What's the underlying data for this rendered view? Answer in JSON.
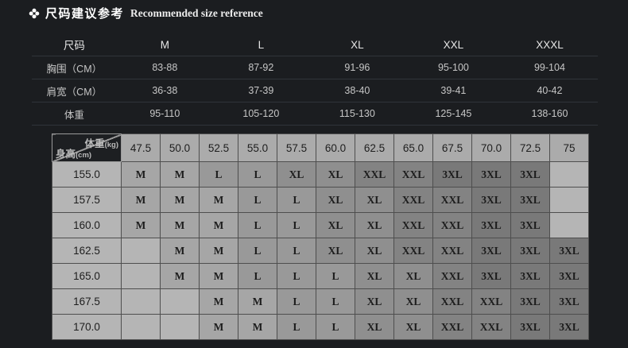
{
  "header": {
    "title_cn": "尺码建议参考",
    "title_en": "Recommended size reference",
    "icon": "flower-icon",
    "icon_color": "#ffffff"
  },
  "size_table": {
    "header": [
      "尺码",
      "M",
      "L",
      "XL",
      "XXL",
      "XXXL"
    ],
    "rows": [
      {
        "label": "胸围（CM）",
        "values": [
          "83-88",
          "87-92",
          "91-96",
          "95-100",
          "99-104"
        ]
      },
      {
        "label": "肩宽（CM）",
        "values": [
          "36-38",
          "37-39",
          "38-40",
          "39-41",
          "40-42"
        ]
      },
      {
        "label": "体重",
        "values": [
          "95-110",
          "105-120",
          "115-130",
          "125-145",
          "138-160"
        ]
      }
    ]
  },
  "matrix_table": {
    "corner": {
      "top_right": "体重",
      "top_right_unit": "(kg)",
      "bottom_left": "身高",
      "bottom_left_unit": "(cm)"
    },
    "weights": [
      "47.5",
      "50.0",
      "52.5",
      "55.0",
      "57.5",
      "60.0",
      "62.5",
      "65.0",
      "67.5",
      "70.0",
      "72.5",
      "75"
    ],
    "rows": [
      {
        "height": "155.0",
        "sizes": [
          "M",
          "M",
          "L",
          "L",
          "XL",
          "XL",
          "XXL",
          "XXL",
          "3XL",
          "3XL",
          "3XL",
          ""
        ]
      },
      {
        "height": "157.5",
        "sizes": [
          "M",
          "M",
          "M",
          "L",
          "L",
          "XL",
          "XL",
          "XXL",
          "XXL",
          "3XL",
          "3XL",
          ""
        ]
      },
      {
        "height": "160.0",
        "sizes": [
          "M",
          "M",
          "M",
          "L",
          "L",
          "XL",
          "XL",
          "XXL",
          "XXL",
          "3XL",
          "3XL",
          ""
        ]
      },
      {
        "height": "162.5",
        "sizes": [
          "",
          "M",
          "M",
          "L",
          "L",
          "XL",
          "XL",
          "XXL",
          "XXL",
          "3XL",
          "3XL",
          "3XL"
        ]
      },
      {
        "height": "165.0",
        "sizes": [
          "",
          "M",
          "M",
          "L",
          "L",
          "L",
          "XL",
          "XL",
          "XXL",
          "3XL",
          "3XL",
          "3XL"
        ]
      },
      {
        "height": "167.5",
        "sizes": [
          "",
          "",
          "M",
          "M",
          "L",
          "L",
          "XL",
          "XL",
          "XXL",
          "XXL",
          "3XL",
          "3XL"
        ]
      },
      {
        "height": "170.0",
        "sizes": [
          "",
          "",
          "M",
          "M",
          "L",
          "L",
          "XL",
          "XL",
          "XXL",
          "XXL",
          "3XL",
          "3XL"
        ]
      }
    ],
    "size_colors": {
      "M": "#a6a6a6",
      "L": "#999999",
      "XL": "#8f8f8f",
      "XXL": "#838383",
      "3XL": "#797979",
      "empty": "#b5b5b5"
    },
    "header_bg": "#ababab",
    "height_col_bg": "#b5b5b5",
    "corner_bg": "#1d1f22",
    "grid_line": "#4e4e4e"
  },
  "page_bg": "#1b1d20"
}
